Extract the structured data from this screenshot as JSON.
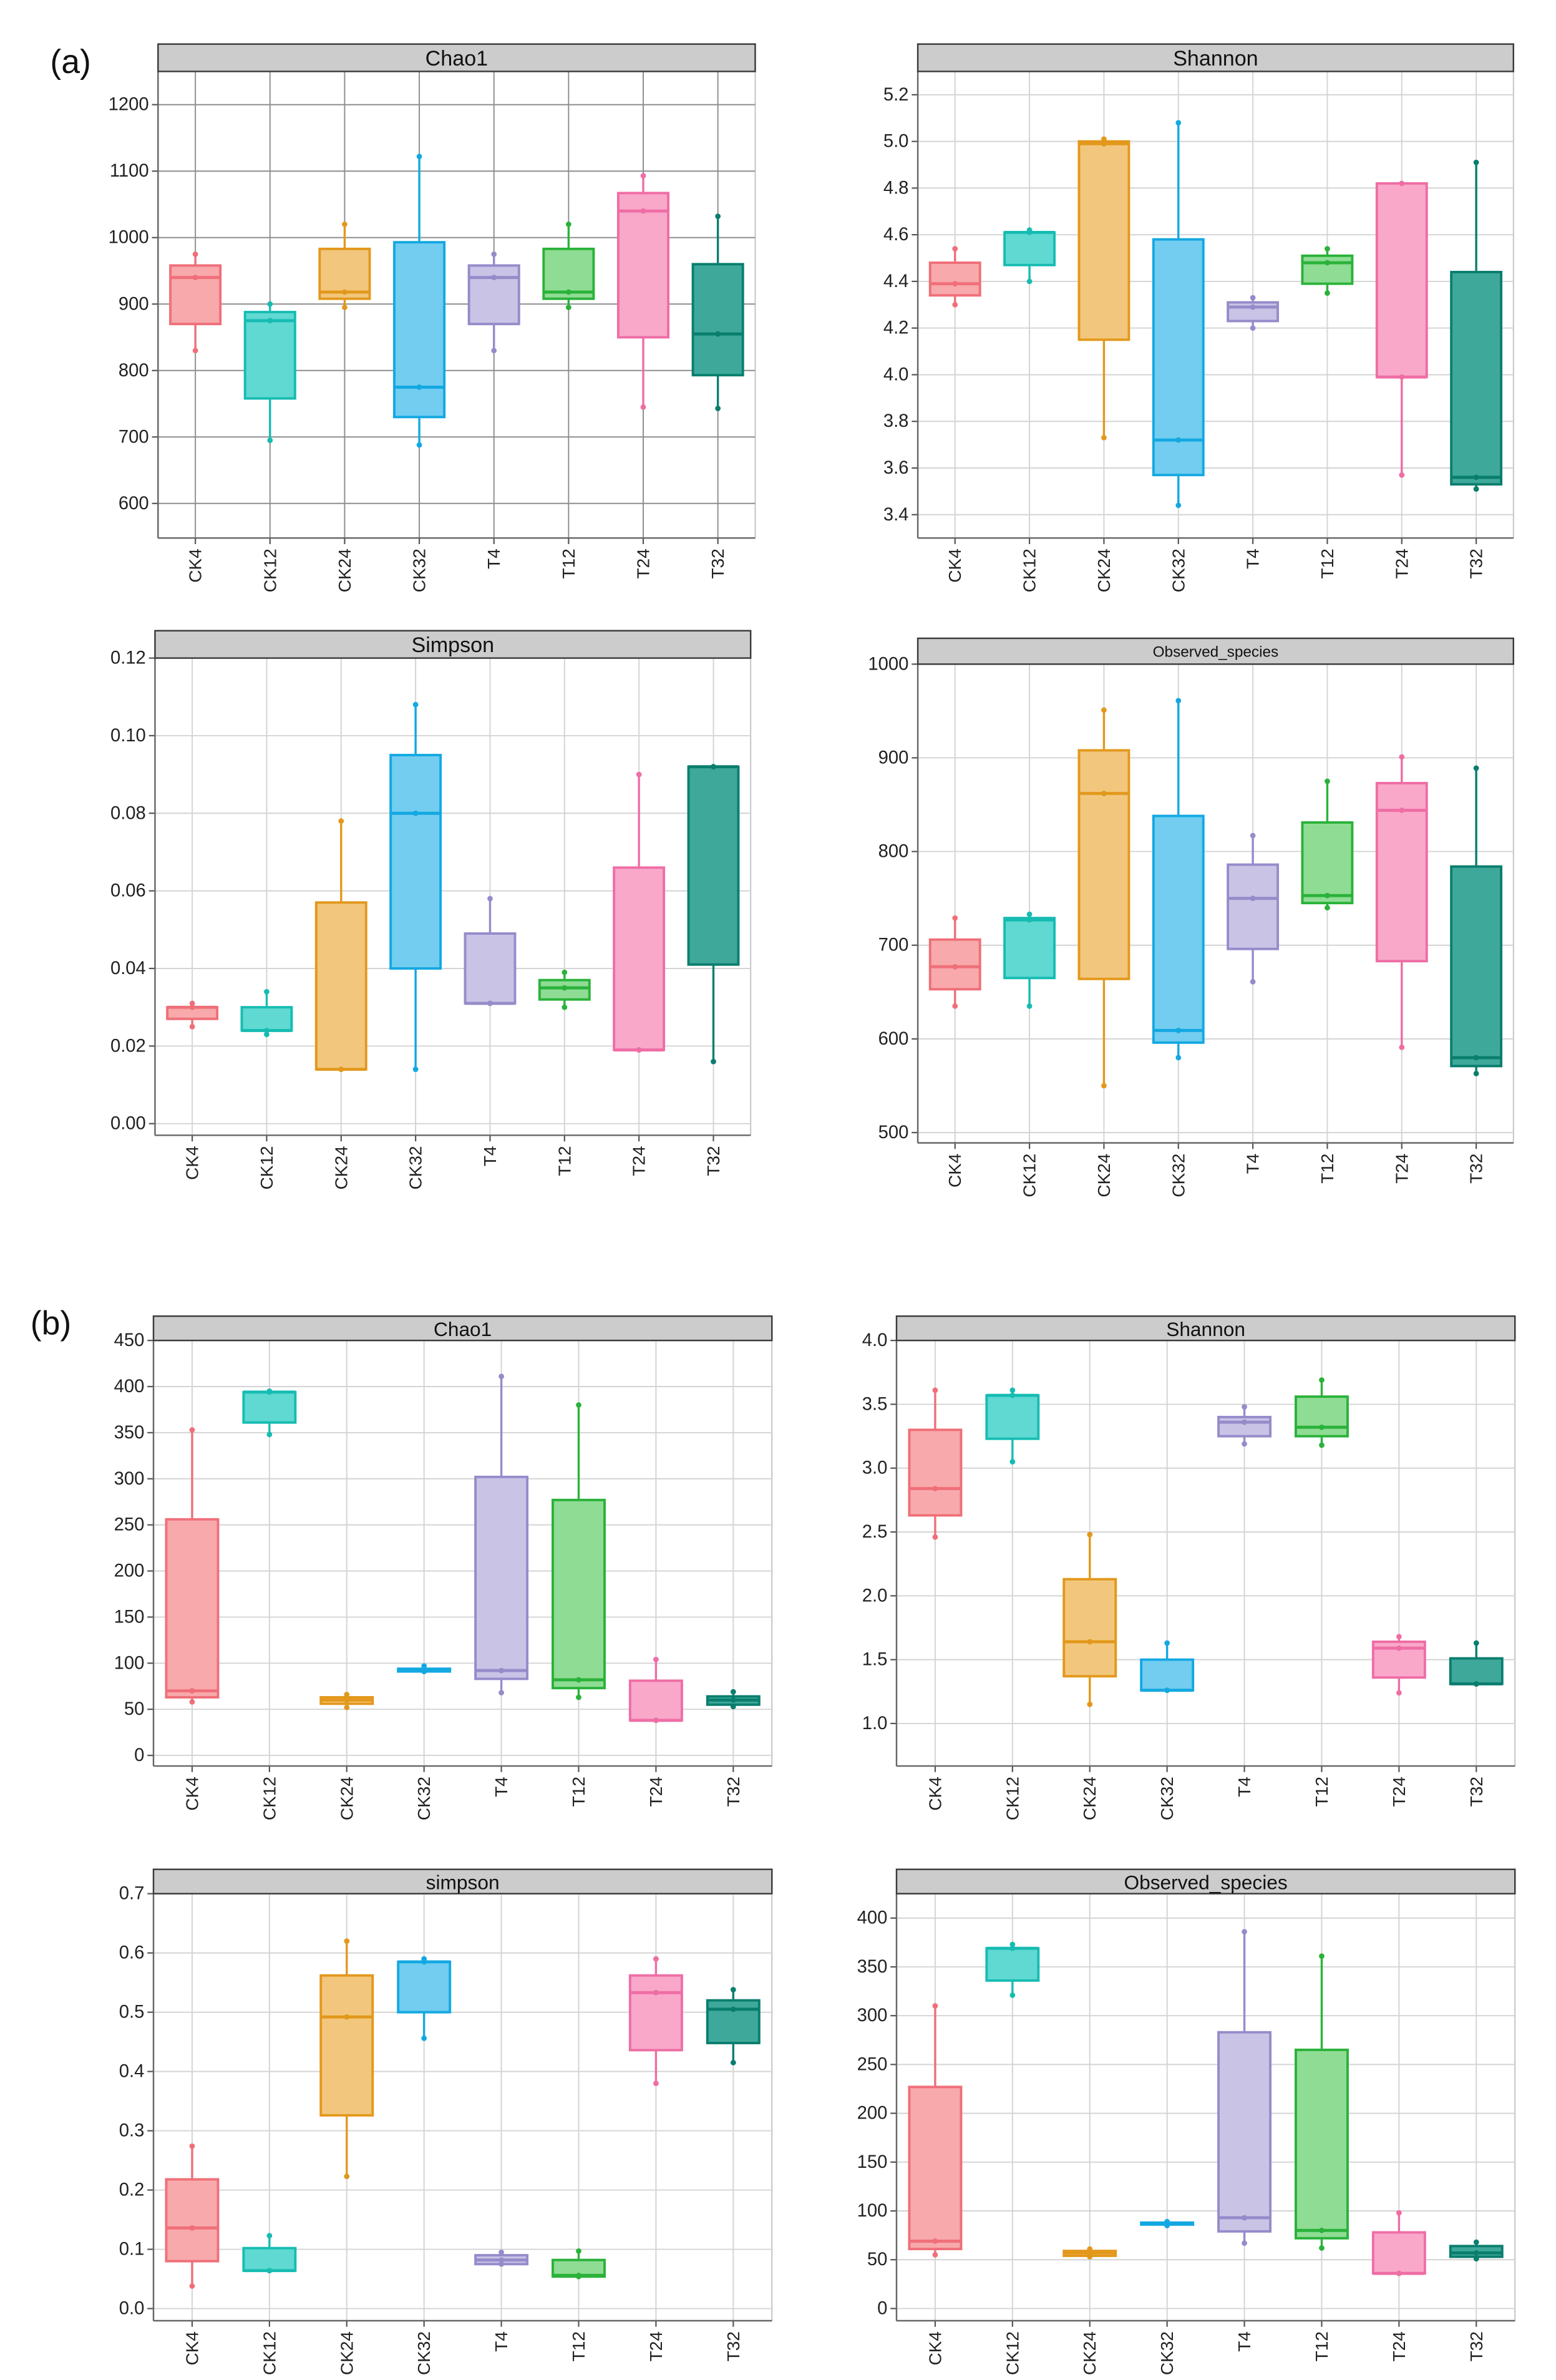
{
  "panel_labels": {
    "a": "(a)",
    "b": "(b)"
  },
  "palette": {
    "CK4": {
      "fill": "#F8A9AB",
      "stroke": "#EF6F79"
    },
    "CK12": {
      "fill": "#5FD9D2",
      "stroke": "#16BCB2"
    },
    "CK24": {
      "fill": "#F2C77D",
      "stroke": "#E3981C"
    },
    "CK32": {
      "fill": "#72CDF0",
      "stroke": "#13A8E2"
    },
    "T4": {
      "fill": "#C9C3E6",
      "stroke": "#968BCA"
    },
    "T12": {
      "fill": "#8FDC94",
      "stroke": "#2AB23A"
    },
    "T24": {
      "fill": "#F9A8C9",
      "stroke": "#EF6DA5"
    },
    "T32": {
      "fill": "#3EA99A",
      "stroke": "#0A7E6E"
    }
  },
  "chart_data": [
    {
      "type": "box",
      "title": "Chao1",
      "categories": [
        "CK4",
        "CK12",
        "CK24",
        "CK32",
        "T4",
        "T12",
        "T24",
        "T32"
      ],
      "yticks": [
        "600",
        "700",
        "800",
        "900",
        "1000",
        "1100",
        "1200"
      ],
      "ylim": [
        548,
        1250
      ],
      "grid_color": "#8E8E8E",
      "boxes": [
        {
          "min": 830,
          "q1": 870,
          "median": 940,
          "q3": 958,
          "max": 975,
          "points": [
            975,
            940,
            830
          ]
        },
        {
          "min": 695,
          "q1": 758,
          "median": 875,
          "q3": 888,
          "max": 900,
          "points": [
            900,
            875,
            695
          ]
        },
        {
          "min": 895,
          "q1": 908,
          "median": 918,
          "q3": 983,
          "max": 1020,
          "points": [
            1020,
            918,
            895
          ]
        },
        {
          "min": 688,
          "q1": 730,
          "median": 775,
          "q3": 993,
          "max": 1122,
          "points": [
            1122,
            775,
            688
          ]
        },
        {
          "min": 830,
          "q1": 870,
          "median": 940,
          "q3": 958,
          "max": 975,
          "points": [
            975,
            940,
            830
          ]
        },
        {
          "min": 895,
          "q1": 908,
          "median": 918,
          "q3": 983,
          "max": 1020,
          "points": [
            1020,
            918,
            895
          ]
        },
        {
          "min": 745,
          "q1": 850,
          "median": 1040,
          "q3": 1067,
          "max": 1093,
          "points": [
            1093,
            1040,
            745
          ]
        },
        {
          "min": 743,
          "q1": 793,
          "median": 855,
          "q3": 960,
          "max": 1032,
          "points": [
            1032,
            855,
            743
          ]
        }
      ]
    },
    {
      "type": "box",
      "title": "Shannon",
      "categories": [
        "CK4",
        "CK12",
        "CK24",
        "CK32",
        "T4",
        "T12",
        "T24",
        "T32"
      ],
      "yticks": [
        "3.4",
        "3.6",
        "3.8",
        "4.0",
        "4.2",
        "4.4",
        "4.6",
        "4.8",
        "5.0",
        "5.2"
      ],
      "ylim": [
        3.3,
        5.3
      ],
      "grid_color": "#D4D4D4",
      "boxes": [
        {
          "min": 4.3,
          "q1": 4.34,
          "median": 4.39,
          "q3": 4.48,
          "max": 4.54,
          "points": [
            4.54,
            4.39,
            4.3
          ]
        },
        {
          "min": 4.4,
          "q1": 4.47,
          "median": 4.61,
          "q3": 4.61,
          "max": 4.62,
          "points": [
            4.62,
            4.61,
            4.4
          ]
        },
        {
          "min": 3.73,
          "q1": 4.15,
          "median": 4.99,
          "q3": 5.0,
          "max": 5.01,
          "points": [
            5.01,
            4.99,
            3.73
          ]
        },
        {
          "min": 3.44,
          "q1": 3.57,
          "median": 3.72,
          "q3": 4.58,
          "max": 5.08,
          "points": [
            5.08,
            3.72,
            3.44
          ]
        },
        {
          "min": 4.2,
          "q1": 4.23,
          "median": 4.29,
          "q3": 4.31,
          "max": 4.33,
          "points": [
            4.33,
            4.29,
            4.2
          ]
        },
        {
          "min": 4.35,
          "q1": 4.39,
          "median": 4.48,
          "q3": 4.51,
          "max": 4.54,
          "points": [
            4.54,
            4.48,
            4.35
          ]
        },
        {
          "min": 3.57,
          "q1": 3.99,
          "median": 3.99,
          "q3": 4.82,
          "max": 4.82,
          "points": [
            4.82,
            3.99,
            3.57
          ]
        },
        {
          "min": 3.51,
          "q1": 3.53,
          "median": 3.56,
          "q3": 4.44,
          "max": 4.91,
          "points": [
            4.91,
            3.56,
            3.51
          ]
        }
      ]
    },
    {
      "type": "box",
      "title": "Simpson",
      "categories": [
        "CK4",
        "CK12",
        "CK24",
        "CK32",
        "T4",
        "T12",
        "T24",
        "T32"
      ],
      "yticks": [
        "0.00",
        "0.02",
        "0.04",
        "0.06",
        "0.08",
        "0.10",
        "0.12"
      ],
      "ylim": [
        -0.003,
        0.12
      ],
      "grid_color": "#D4D4D4",
      "boxes": [
        {
          "min": 0.025,
          "q1": 0.027,
          "median": 0.03,
          "q3": 0.03,
          "max": 0.031,
          "points": [
            0.031,
            0.03,
            0.025
          ]
        },
        {
          "min": 0.023,
          "q1": 0.024,
          "median": 0.024,
          "q3": 0.03,
          "max": 0.034,
          "points": [
            0.034,
            0.024,
            0.023
          ]
        },
        {
          "min": 0.014,
          "q1": 0.014,
          "median": 0.014,
          "q3": 0.057,
          "max": 0.078,
          "points": [
            0.078,
            0.014,
            0.014
          ]
        },
        {
          "min": 0.014,
          "q1": 0.04,
          "median": 0.08,
          "q3": 0.095,
          "max": 0.108,
          "points": [
            0.108,
            0.08,
            0.014
          ]
        },
        {
          "min": 0.031,
          "q1": 0.031,
          "median": 0.031,
          "q3": 0.049,
          "max": 0.058,
          "points": [
            0.058,
            0.031,
            0.031
          ]
        },
        {
          "min": 0.03,
          "q1": 0.032,
          "median": 0.035,
          "q3": 0.037,
          "max": 0.039,
          "points": [
            0.039,
            0.035,
            0.03
          ]
        },
        {
          "min": 0.019,
          "q1": 0.019,
          "median": 0.019,
          "q3": 0.066,
          "max": 0.09,
          "points": [
            0.09,
            0.019,
            0.019
          ]
        },
        {
          "min": 0.016,
          "q1": 0.041,
          "median": 0.092,
          "q3": 0.092,
          "max": 0.092,
          "points": [
            0.092,
            0.092,
            0.016
          ]
        }
      ]
    },
    {
      "type": "box",
      "title": "Observed_species",
      "categories": [
        "CK4",
        "CK12",
        "CK24",
        "CK32",
        "T4",
        "T12",
        "T24",
        "T32"
      ],
      "yticks": [
        "500",
        "600",
        "700",
        "800",
        "900",
        "1000"
      ],
      "ylim": [
        489,
        1000
      ],
      "grid_color": "#D4D4D4",
      "boxes": [
        {
          "min": 635,
          "q1": 653,
          "median": 677,
          "q3": 706,
          "max": 729,
          "points": [
            729,
            677,
            635
          ]
        },
        {
          "min": 635,
          "q1": 665,
          "median": 727,
          "q3": 729,
          "max": 733,
          "points": [
            733,
            727,
            635
          ]
        },
        {
          "min": 550,
          "q1": 664,
          "median": 862,
          "q3": 908,
          "max": 951,
          "points": [
            951,
            862,
            550
          ]
        },
        {
          "min": 580,
          "q1": 596,
          "median": 609,
          "q3": 838,
          "max": 961,
          "points": [
            961,
            609,
            580
          ]
        },
        {
          "min": 661,
          "q1": 696,
          "median": 750,
          "q3": 786,
          "max": 817,
          "points": [
            817,
            750,
            661
          ]
        },
        {
          "min": 740,
          "q1": 745,
          "median": 753,
          "q3": 831,
          "max": 875,
          "points": [
            875,
            753,
            740
          ]
        },
        {
          "min": 591,
          "q1": 683,
          "median": 844,
          "q3": 873,
          "max": 901,
          "points": [
            901,
            844,
            591
          ]
        },
        {
          "min": 563,
          "q1": 571,
          "median": 580,
          "q3": 784,
          "max": 889,
          "points": [
            889,
            580,
            563
          ]
        }
      ]
    },
    {
      "type": "box",
      "title": "Chao1",
      "categories": [
        "CK4",
        "CK12",
        "CK24",
        "CK32",
        "T4",
        "T12",
        "T24",
        "T32"
      ],
      "yticks": [
        "0",
        "50",
        "100",
        "150",
        "200",
        "250",
        "300",
        "350",
        "400",
        "450"
      ],
      "ylim": [
        -11.5,
        450
      ],
      "grid_color": "#D4D4D4",
      "boxes": [
        {
          "min": 58,
          "q1": 63,
          "median": 70,
          "q3": 256,
          "max": 353,
          "points": [
            353,
            70,
            58
          ]
        },
        {
          "min": 348,
          "q1": 361,
          "median": 394,
          "q3": 394,
          "max": 395,
          "points": [
            395,
            394,
            348
          ]
        },
        {
          "min": 52,
          "q1": 56,
          "median": 60,
          "q3": 63,
          "max": 66,
          "points": [
            66,
            60,
            52
          ]
        },
        {
          "min": 91,
          "q1": 91,
          "median": 93,
          "q3": 94,
          "max": 97,
          "points": [
            97,
            93,
            91
          ]
        },
        {
          "min": 68,
          "q1": 83,
          "median": 92,
          "q3": 302,
          "max": 411,
          "points": [
            411,
            92,
            68
          ]
        },
        {
          "min": 63,
          "q1": 73,
          "median": 82,
          "q3": 277,
          "max": 380,
          "points": [
            380,
            82,
            63
          ]
        },
        {
          "min": 38,
          "q1": 38,
          "median": 38,
          "q3": 81,
          "max": 104,
          "points": [
            104,
            38,
            38
          ]
        },
        {
          "min": 53,
          "q1": 55,
          "median": 60,
          "q3": 64,
          "max": 69,
          "points": [
            69,
            60,
            53
          ]
        }
      ]
    },
    {
      "type": "box",
      "title": "Shannon",
      "categories": [
        "CK4",
        "CK12",
        "CK24",
        "CK32",
        "T4",
        "T12",
        "T24",
        "T32"
      ],
      "yticks": [
        "1.0",
        "1.5",
        "2.0",
        "2.5",
        "3.0",
        "3.5",
        "4.0"
      ],
      "ylim": [
        0.667,
        4.0
      ],
      "grid_color": "#D4D4D4",
      "boxes": [
        {
          "min": 2.46,
          "q1": 2.63,
          "median": 2.84,
          "q3": 3.3,
          "max": 3.61,
          "points": [
            3.61,
            2.84,
            2.46
          ]
        },
        {
          "min": 3.05,
          "q1": 3.23,
          "median": 3.57,
          "q3": 3.57,
          "max": 3.61,
          "points": [
            3.61,
            3.57,
            3.05
          ]
        },
        {
          "min": 1.15,
          "q1": 1.37,
          "median": 1.64,
          "q3": 2.13,
          "max": 2.48,
          "points": [
            2.48,
            1.64,
            1.15
          ]
        },
        {
          "min": 1.26,
          "q1": 1.26,
          "median": 1.26,
          "q3": 1.5,
          "max": 1.63,
          "points": [
            1.63,
            1.26,
            1.26
          ]
        },
        {
          "min": 3.19,
          "q1": 3.25,
          "median": 3.36,
          "q3": 3.4,
          "max": 3.48,
          "points": [
            3.48,
            3.36,
            3.19
          ]
        },
        {
          "min": 3.18,
          "q1": 3.25,
          "median": 3.32,
          "q3": 3.56,
          "max": 3.69,
          "points": [
            3.69,
            3.32,
            3.18
          ]
        },
        {
          "min": 1.24,
          "q1": 1.36,
          "median": 1.59,
          "q3": 1.64,
          "max": 1.68,
          "points": [
            1.68,
            1.59,
            1.24
          ]
        },
        {
          "min": 1.31,
          "q1": 1.31,
          "median": 1.31,
          "q3": 1.51,
          "max": 1.63,
          "points": [
            1.63,
            1.31,
            1.31
          ]
        }
      ]
    },
    {
      "type": "box",
      "title": "simpson",
      "categories": [
        "CK4",
        "CK12",
        "CK24",
        "CK32",
        "T4",
        "T12",
        "T24",
        "T32"
      ],
      "yticks": [
        "0.0",
        "0.1",
        "0.2",
        "0.3",
        "0.4",
        "0.5",
        "0.6",
        "0.7"
      ],
      "ylim": [
        -0.0205,
        0.7
      ],
      "grid_color": "#D4D4D4",
      "boxes": [
        {
          "min": 0.038,
          "q1": 0.08,
          "median": 0.136,
          "q3": 0.218,
          "max": 0.274,
          "points": [
            0.274,
            0.136,
            0.038
          ]
        },
        {
          "min": 0.064,
          "q1": 0.064,
          "median": 0.064,
          "q3": 0.102,
          "max": 0.123,
          "points": [
            0.123,
            0.064,
            0.064
          ]
        },
        {
          "min": 0.223,
          "q1": 0.326,
          "median": 0.492,
          "q3": 0.562,
          "max": 0.62,
          "points": [
            0.62,
            0.492,
            0.223
          ]
        },
        {
          "min": 0.456,
          "q1": 0.5,
          "median": 0.585,
          "q3": 0.585,
          "max": 0.59,
          "points": [
            0.59,
            0.585,
            0.456
          ]
        },
        {
          "min": 0.075,
          "q1": 0.075,
          "median": 0.082,
          "q3": 0.09,
          "max": 0.095,
          "points": [
            0.095,
            0.082,
            0.075
          ]
        },
        {
          "min": 0.054,
          "q1": 0.054,
          "median": 0.056,
          "q3": 0.082,
          "max": 0.097,
          "points": [
            0.097,
            0.056,
            0.054
          ]
        },
        {
          "min": 0.38,
          "q1": 0.436,
          "median": 0.533,
          "q3": 0.562,
          "max": 0.59,
          "points": [
            0.59,
            0.533,
            0.38
          ]
        },
        {
          "min": 0.415,
          "q1": 0.448,
          "median": 0.505,
          "q3": 0.52,
          "max": 0.538,
          "points": [
            0.538,
            0.505,
            0.415
          ]
        }
      ]
    },
    {
      "type": "box",
      "title": "Observed_species",
      "categories": [
        "CK4",
        "CK12",
        "CK24",
        "CK32",
        "T4",
        "T12",
        "T24",
        "T32"
      ],
      "yticks": [
        "0",
        "50",
        "100",
        "150",
        "200",
        "250",
        "300",
        "350",
        "400"
      ],
      "ylim": [
        -12.5,
        425
      ],
      "grid_color": "#D4D4D4",
      "boxes": [
        {
          "min": 55,
          "q1": 61,
          "median": 69,
          "q3": 227,
          "max": 310,
          "points": [
            310,
            69,
            55
          ]
        },
        {
          "min": 321,
          "q1": 336,
          "median": 369,
          "q3": 369,
          "max": 373,
          "points": [
            373,
            369,
            321
          ]
        },
        {
          "min": 53,
          "q1": 54,
          "median": 57,
          "q3": 59,
          "max": 61,
          "points": [
            61,
            57,
            53
          ]
        },
        {
          "min": 85,
          "q1": 86,
          "median": 87,
          "q3": 88,
          "max": 89,
          "points": [
            89,
            87,
            85
          ]
        },
        {
          "min": 67,
          "q1": 79,
          "median": 93,
          "q3": 283,
          "max": 386,
          "points": [
            386,
            93,
            67
          ]
        },
        {
          "min": 62,
          "q1": 72,
          "median": 80,
          "q3": 265,
          "max": 361,
          "points": [
            361,
            80,
            62
          ]
        },
        {
          "min": 36,
          "q1": 36,
          "median": 36,
          "q3": 78,
          "max": 98,
          "points": [
            98,
            36,
            36
          ]
        },
        {
          "min": 51,
          "q1": 53,
          "median": 57,
          "q3": 64,
          "max": 68,
          "points": [
            68,
            57,
            51
          ]
        }
      ]
    }
  ]
}
